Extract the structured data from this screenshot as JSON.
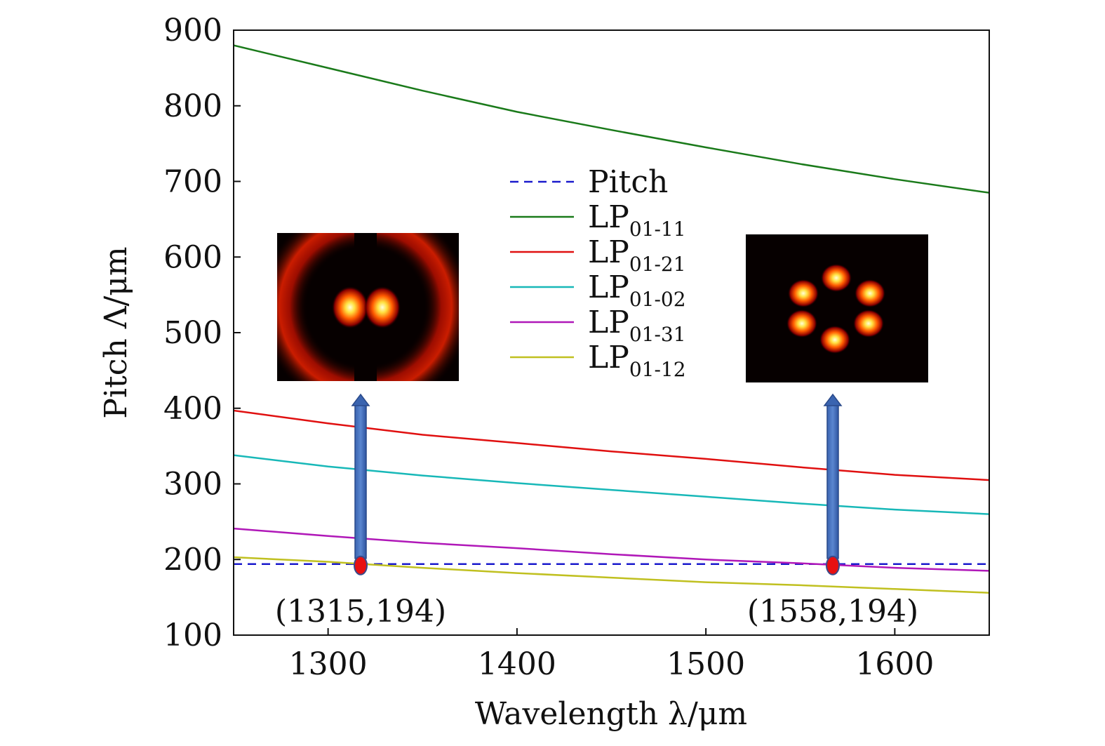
{
  "chart_data": {
    "type": "line",
    "xlabel": "Wavelength λ/μm",
    "ylabel": "Pitch Λ/μm",
    "xlim": [
      1250,
      1650
    ],
    "ylim": [
      100,
      900
    ],
    "xticks": [
      1300,
      1400,
      1500,
      1600
    ],
    "yticks": [
      100,
      200,
      300,
      400,
      500,
      600,
      700,
      800,
      900
    ],
    "grid": false,
    "legend_position": "center",
    "series": [
      {
        "name": "Pitch",
        "base": "Pitch",
        "sub": "",
        "color": "#1a1acc",
        "dash": true,
        "x": [
          1250,
          1650
        ],
        "y": [
          194,
          194
        ]
      },
      {
        "name": "LP01-11",
        "base": "LP",
        "sub": "01-11",
        "color": "#1a7a1a",
        "dash": false,
        "x": [
          1250,
          1300,
          1350,
          1400,
          1450,
          1500,
          1550,
          1600,
          1650
        ],
        "y": [
          880,
          850,
          820,
          792,
          768,
          745,
          723,
          703,
          685
        ]
      },
      {
        "name": "LP01-21",
        "base": "LP",
        "sub": "01-21",
        "color": "#e01010",
        "dash": false,
        "x": [
          1250,
          1300,
          1350,
          1400,
          1450,
          1500,
          1550,
          1600,
          1650
        ],
        "y": [
          397,
          380,
          365,
          354,
          343,
          333,
          322,
          312,
          305
        ]
      },
      {
        "name": "LP01-02",
        "base": "LP",
        "sub": "01-02",
        "color": "#18b8b8",
        "dash": false,
        "x": [
          1250,
          1300,
          1350,
          1400,
          1450,
          1500,
          1550,
          1600,
          1650
        ],
        "y": [
          338,
          323,
          311,
          301,
          292,
          283,
          274,
          266,
          260
        ]
      },
      {
        "name": "LP01-31",
        "base": "LP",
        "sub": "01-31",
        "color": "#b018b8",
        "dash": false,
        "x": [
          1250,
          1300,
          1350,
          1400,
          1450,
          1500,
          1550,
          1600,
          1650
        ],
        "y": [
          241,
          231,
          222,
          215,
          207,
          200,
          195,
          189,
          185
        ]
      },
      {
        "name": "LP01-12",
        "base": "LP",
        "sub": "01-12",
        "color": "#c0c020",
        "dash": false,
        "x": [
          1250,
          1300,
          1350,
          1400,
          1450,
          1500,
          1550,
          1600,
          1650
        ],
        "y": [
          203,
          197,
          189,
          182,
          176,
          170,
          166,
          161,
          156
        ]
      }
    ],
    "annotations": [
      {
        "text": "(1315,194)",
        "x": 1315,
        "y": 194
      },
      {
        "text": "(1558,194)",
        "x": 1558,
        "y": 194
      }
    ],
    "insets": [
      {
        "name": "mode-profile-lp11",
        "pattern": "two-lobe"
      },
      {
        "name": "mode-profile-lp31",
        "pattern": "six-lobe"
      }
    ]
  }
}
